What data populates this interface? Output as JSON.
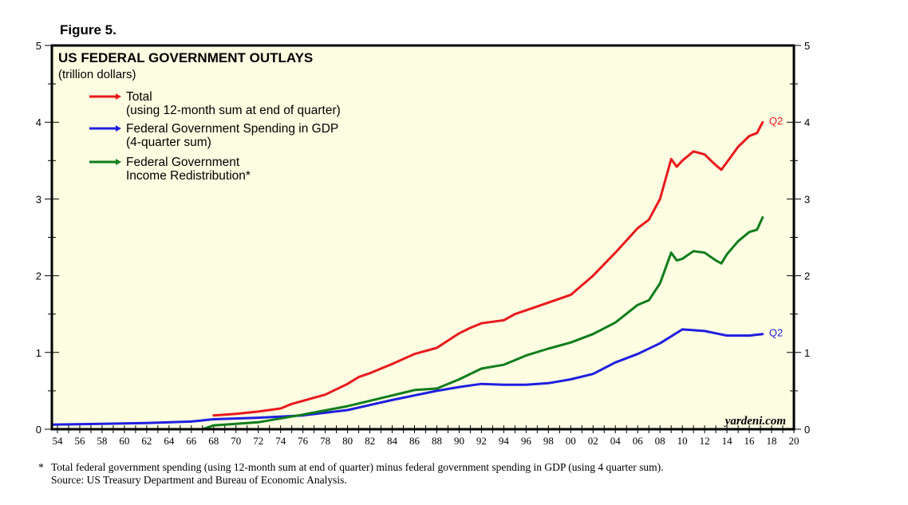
{
  "figure_label": "Figure 5.",
  "footnote": {
    "marker": "*",
    "text": "Total federal government spending (using 12-month sum at end of quarter) minus federal government spending in GDP (using 4 quarter sum).",
    "source": "Source: US Treasury Department and Bureau of Economic Analysis."
  },
  "colors": {
    "total": "#e8191c",
    "gdp": "#1f1fe0",
    "redistribution": "#0f7d1b",
    "plot_bg": "#fdfde2"
  },
  "chart_data": {
    "type": "line",
    "title": "US FEDERAL GOVERNMENT OUTLAYS",
    "subtitle": "(trillion dollars)",
    "watermark": "yardeni.com",
    "xlim": [
      1953.5,
      2020
    ],
    "ylim": [
      0,
      5
    ],
    "x_tick_labels": [
      "54",
      "56",
      "58",
      "60",
      "62",
      "64",
      "66",
      "68",
      "70",
      "72",
      "74",
      "76",
      "78",
      "80",
      "82",
      "84",
      "86",
      "88",
      "90",
      "92",
      "94",
      "96",
      "98",
      "00",
      "02",
      "04",
      "06",
      "08",
      "10",
      "12",
      "14",
      "16",
      "18",
      "20"
    ],
    "y_tick_labels": [
      "0",
      "1",
      "2",
      "3",
      "4",
      "5"
    ],
    "legend": [
      {
        "key": "total",
        "line1": "Total",
        "line2": "(using 12-month sum at end of quarter)"
      },
      {
        "key": "gdp",
        "line1": "Federal Government Spending in GDP",
        "line2": "(4-quarter sum)"
      },
      {
        "key": "redistribution",
        "line1": "Federal Government",
        "line2": "Income Redistribution*"
      }
    ],
    "series": [
      {
        "key": "total",
        "name": "Total",
        "end_label": "Q2",
        "x": [
          1968,
          1970,
          1972,
          1974,
          1975,
          1976,
          1978,
          1980,
          1981,
          1982,
          1984,
          1986,
          1988,
          1990,
          1991,
          1992,
          1993,
          1994,
          1995,
          1996,
          1998,
          2000,
          2002,
          2004,
          2006,
          2007,
          2008,
          2009,
          2009.5,
          2010,
          2011,
          2012,
          2013,
          2013.5,
          2014,
          2015,
          2016,
          2016.7,
          2017.2
        ],
        "values": [
          0.18,
          0.2,
          0.23,
          0.27,
          0.33,
          0.37,
          0.45,
          0.59,
          0.68,
          0.73,
          0.85,
          0.98,
          1.06,
          1.25,
          1.32,
          1.38,
          1.4,
          1.42,
          1.5,
          1.55,
          1.65,
          1.75,
          2.0,
          2.3,
          2.62,
          2.73,
          3.0,
          3.52,
          3.42,
          3.5,
          3.62,
          3.58,
          3.44,
          3.38,
          3.48,
          3.68,
          3.82,
          3.86,
          4.0
        ]
      },
      {
        "key": "gdp",
        "name": "Federal Government Spending in GDP",
        "end_label": "Q2",
        "x": [
          1953.5,
          1958,
          1962,
          1966,
          1968,
          1972,
          1976,
          1980,
          1984,
          1988,
          1990,
          1992,
          1994,
          1996,
          1998,
          2000,
          2002,
          2004,
          2006,
          2008,
          2010,
          2012,
          2014,
          2016,
          2017.2
        ],
        "values": [
          0.06,
          0.07,
          0.08,
          0.1,
          0.13,
          0.15,
          0.18,
          0.25,
          0.38,
          0.5,
          0.55,
          0.59,
          0.58,
          0.58,
          0.6,
          0.65,
          0.72,
          0.87,
          0.98,
          1.12,
          1.3,
          1.28,
          1.22,
          1.22,
          1.24
        ]
      },
      {
        "key": "redistribution",
        "name": "Federal Government Income Redistribution",
        "x": [
          1953.5,
          1967,
          1968,
          1972,
          1976,
          1980,
          1984,
          1986,
          1988,
          1990,
          1992,
          1994,
          1996,
          1998,
          2000,
          2002,
          2004,
          2006,
          2007,
          2008,
          2009,
          2009.5,
          2010,
          2011,
          2012,
          2013,
          2013.5,
          2014,
          2015,
          2016,
          2016.7,
          2017.2
        ],
        "values": [
          0.0,
          0.0,
          0.05,
          0.09,
          0.19,
          0.3,
          0.44,
          0.51,
          0.53,
          0.65,
          0.79,
          0.84,
          0.96,
          1.05,
          1.13,
          1.24,
          1.39,
          1.62,
          1.68,
          1.9,
          2.3,
          2.2,
          2.22,
          2.32,
          2.3,
          2.2,
          2.16,
          2.28,
          2.45,
          2.57,
          2.6,
          2.76
        ]
      }
    ]
  }
}
